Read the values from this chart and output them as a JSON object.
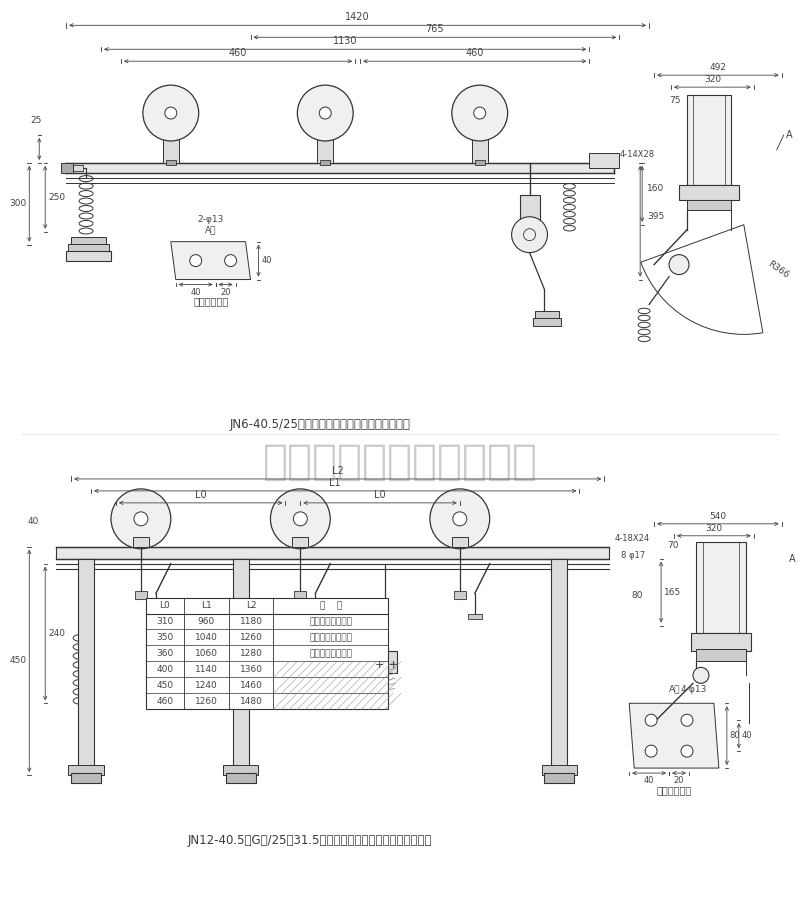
{
  "bg_color": "#ffffff",
  "line_color": "#333333",
  "dim_color": "#444444",
  "company_color": "#cccccc",
  "company": "仪征普菲特电器有限公司",
  "title1": "JN6-40.5/25户内高压接地开关外形及安装尺尧图",
  "title2": "JN12-40.5（G）/25～31.5户内高压接地开关外形及安装尺尧图",
  "label_jiexian": "接线端子尺尧",
  "label_jiexian2": "接线端子尺尧",
  "table_headers": [
    "L0",
    "L1",
    "L2",
    "备    注"
  ],
  "table_rows": [
    [
      "310",
      "960",
      "1180",
      "用户自加绕缘隔板"
    ],
    [
      "350",
      "1040",
      "1260",
      "用户自加绕缘隔板"
    ],
    [
      "360",
      "1060",
      "1280",
      "用户自加绕缘隔板"
    ],
    [
      "400",
      "1140",
      "1360",
      ""
    ],
    [
      "450",
      "1240",
      "1460",
      ""
    ],
    [
      "460",
      "1260",
      "1480",
      ""
    ]
  ]
}
